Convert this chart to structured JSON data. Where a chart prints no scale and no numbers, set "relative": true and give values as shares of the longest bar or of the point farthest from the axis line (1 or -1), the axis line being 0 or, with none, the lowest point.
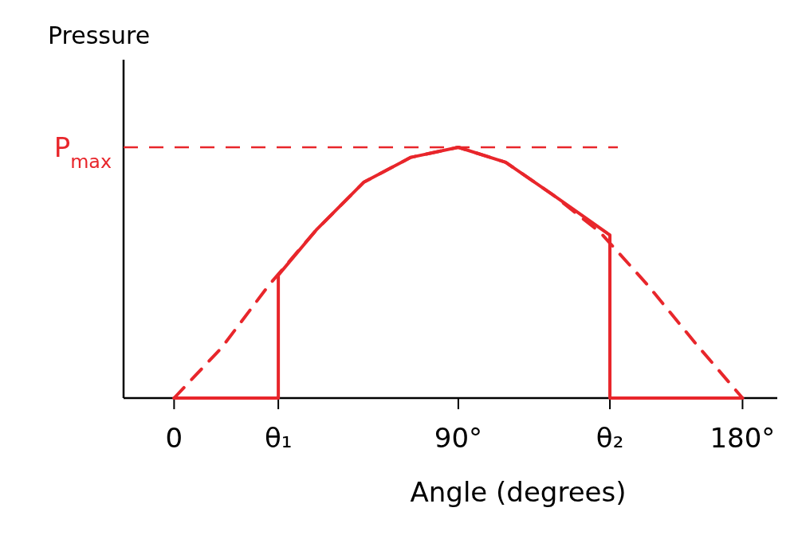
{
  "chart_data": {
    "type": "line",
    "relative": true,
    "xlabel": "Angle (degrees)",
    "ylabel": "Pressure",
    "xlim": [
      -16,
      191
    ],
    "xticks": [
      {
        "value": 0,
        "label": "0"
      },
      {
        "value": 33,
        "label": "θ₁"
      },
      {
        "value": 90,
        "label": "90°"
      },
      {
        "value": 138,
        "label": "θ₂"
      },
      {
        "value": 180,
        "label": "180°"
      }
    ],
    "grid": false,
    "ref_lines": [
      {
        "axis": "y",
        "value": 1,
        "label": "P$_{max}$",
        "color": "#e8262b",
        "line_style": "dashed"
      }
    ],
    "series": [
      {
        "color": "#e8262b",
        "line_style": "dashed",
        "x": [
          0,
          15,
          30,
          45,
          60,
          75,
          90,
          105,
          120,
          135,
          150,
          165,
          180
        ],
        "values": [
          0,
          0.2,
          0.45,
          0.67,
          0.86,
          0.96,
          1,
          0.94,
          0.81,
          0.66,
          0.45,
          0.22,
          0
        ]
      },
      {
        "color": "#e8262b",
        "line_style": "solid",
        "x": [
          0,
          33,
          33,
          45,
          60,
          75,
          90,
          105,
          120,
          138,
          138,
          180
        ],
        "values": [
          0,
          0,
          0.49,
          0.67,
          0.86,
          0.96,
          1,
          0.94,
          0.81,
          0.65,
          0,
          0
        ]
      }
    ]
  }
}
